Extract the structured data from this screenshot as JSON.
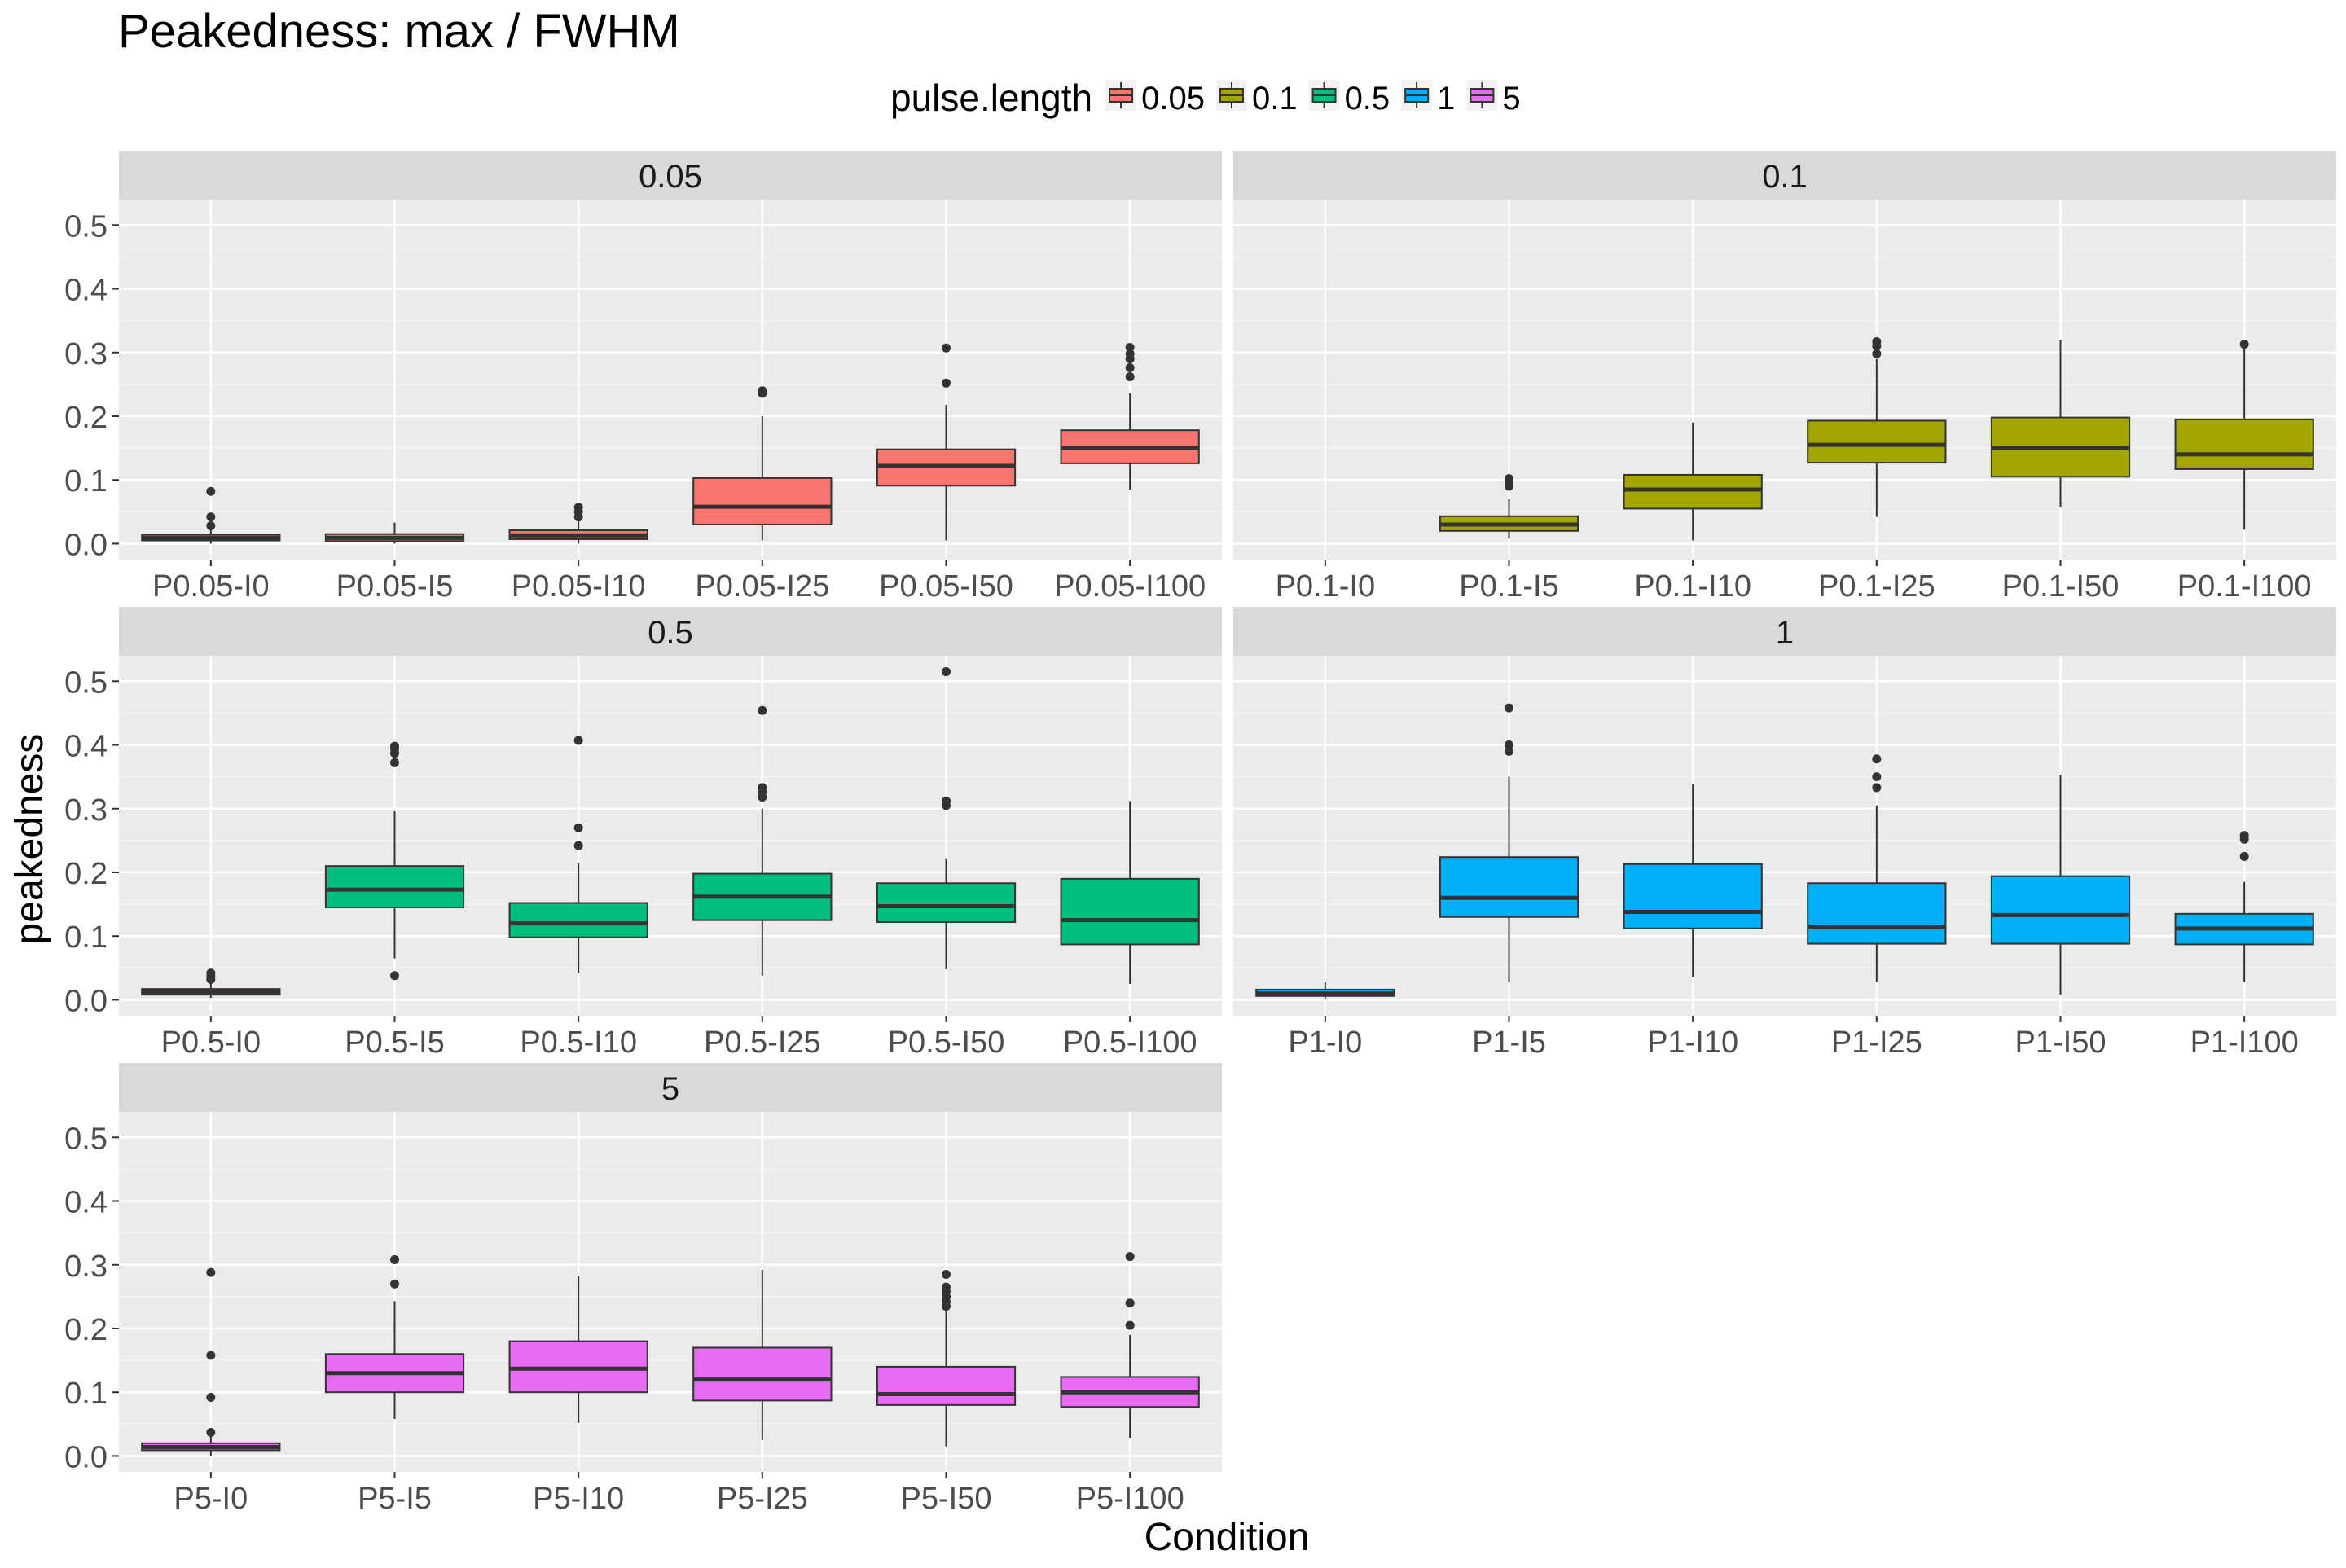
{
  "chart_data": {
    "type": "boxplot",
    "title": "Peakedness: max / FWHM",
    "xlabel": "Condition",
    "ylabel": "peakedness",
    "ylim": [
      -0.025,
      0.54
    ],
    "yticks": [
      0.0,
      0.1,
      0.2,
      0.3,
      0.4,
      0.5
    ],
    "ytick_labels": [
      "0.0",
      "0.1",
      "0.2",
      "0.3",
      "0.4",
      "0.5"
    ],
    "grid": true,
    "legend": {
      "title": "pulse.length",
      "placement": "top",
      "entries": [
        {
          "label": "0.05",
          "color": "#F8766D"
        },
        {
          "label": "0.1",
          "color": "#A3A500"
        },
        {
          "label": "0.5",
          "color": "#00BF7D"
        },
        {
          "label": "1",
          "color": "#00B0F6"
        },
        {
          "label": "5",
          "color": "#E76BF3"
        }
      ]
    },
    "facets": [
      {
        "label": "0.05",
        "color": "#F8766D",
        "boxes": [
          {
            "category": "P0.05-I0",
            "whisker_low": 0.0,
            "q1": 0.005,
            "median": 0.009,
            "q3": 0.014,
            "whisker_high": 0.022,
            "outliers": [
              0.028,
              0.042,
              0.082
            ]
          },
          {
            "category": "P0.05-I5",
            "whisker_low": 0.0,
            "q1": 0.004,
            "median": 0.009,
            "q3": 0.015,
            "whisker_high": 0.033,
            "outliers": []
          },
          {
            "category": "P0.05-I10",
            "whisker_low": 0.0,
            "q1": 0.007,
            "median": 0.013,
            "q3": 0.021,
            "whisker_high": 0.035,
            "outliers": [
              0.042,
              0.05,
              0.057
            ]
          },
          {
            "category": "P0.05-I25",
            "whisker_low": 0.005,
            "q1": 0.03,
            "median": 0.058,
            "q3": 0.103,
            "whisker_high": 0.2,
            "outliers": [
              0.236,
              0.24
            ]
          },
          {
            "category": "P0.05-I50",
            "whisker_low": 0.005,
            "q1": 0.091,
            "median": 0.122,
            "q3": 0.148,
            "whisker_high": 0.218,
            "outliers": [
              0.252,
              0.307
            ]
          },
          {
            "category": "P0.05-I100",
            "whisker_low": 0.085,
            "q1": 0.126,
            "median": 0.15,
            "q3": 0.178,
            "whisker_high": 0.236,
            "outliers": [
              0.262,
              0.276,
              0.29,
              0.298,
              0.308
            ]
          }
        ]
      },
      {
        "label": "0.1",
        "color": "#A3A500",
        "boxes": [
          {
            "category": "P0.1-I0"
          },
          {
            "category": "P0.1-I5",
            "whisker_low": 0.008,
            "q1": 0.02,
            "median": 0.03,
            "q3": 0.043,
            "whisker_high": 0.07,
            "outliers": [
              0.09,
              0.096,
              0.102
            ]
          },
          {
            "category": "P0.1-I10",
            "whisker_low": 0.005,
            "q1": 0.055,
            "median": 0.085,
            "q3": 0.108,
            "whisker_high": 0.19,
            "outliers": []
          },
          {
            "category": "P0.1-I25",
            "whisker_low": 0.042,
            "q1": 0.127,
            "median": 0.155,
            "q3": 0.193,
            "whisker_high": 0.29,
            "outliers": [
              0.298,
              0.31,
              0.317
            ]
          },
          {
            "category": "P0.1-I50",
            "whisker_low": 0.058,
            "q1": 0.105,
            "median": 0.15,
            "q3": 0.198,
            "whisker_high": 0.32,
            "outliers": []
          },
          {
            "category": "P0.1-I100",
            "whisker_low": 0.022,
            "q1": 0.117,
            "median": 0.14,
            "q3": 0.195,
            "whisker_high": 0.31,
            "outliers": [
              0.313
            ]
          }
        ]
      },
      {
        "label": "0.5",
        "color": "#00BF7D",
        "boxes": [
          {
            "category": "P0.5-I0",
            "whisker_low": 0.003,
            "q1": 0.008,
            "median": 0.012,
            "q3": 0.017,
            "whisker_high": 0.026,
            "outliers": [
              0.032,
              0.037,
              0.042
            ]
          },
          {
            "category": "P0.5-I5",
            "whisker_low": 0.065,
            "q1": 0.145,
            "median": 0.173,
            "q3": 0.21,
            "whisker_high": 0.296,
            "outliers": [
              0.038,
              0.372,
              0.387,
              0.394,
              0.398
            ]
          },
          {
            "category": "P0.5-I10",
            "whisker_low": 0.042,
            "q1": 0.098,
            "median": 0.12,
            "q3": 0.152,
            "whisker_high": 0.215,
            "outliers": [
              0.242,
              0.27,
              0.407
            ]
          },
          {
            "category": "P0.5-I25",
            "whisker_low": 0.038,
            "q1": 0.125,
            "median": 0.162,
            "q3": 0.198,
            "whisker_high": 0.3,
            "outliers": [
              0.318,
              0.326,
              0.333,
              0.454
            ]
          },
          {
            "category": "P0.5-I50",
            "whisker_low": 0.048,
            "q1": 0.122,
            "median": 0.147,
            "q3": 0.183,
            "whisker_high": 0.222,
            "outliers": [
              0.305,
              0.312,
              0.515
            ]
          },
          {
            "category": "P0.5-I100",
            "whisker_low": 0.025,
            "q1": 0.087,
            "median": 0.125,
            "q3": 0.19,
            "whisker_high": 0.312,
            "outliers": []
          }
        ]
      },
      {
        "label": "1",
        "color": "#00B0F6",
        "boxes": [
          {
            "category": "P1-I0",
            "whisker_low": 0.002,
            "q1": 0.006,
            "median": 0.01,
            "q3": 0.016,
            "whisker_high": 0.028,
            "outliers": []
          },
          {
            "category": "P1-I5",
            "whisker_low": 0.028,
            "q1": 0.13,
            "median": 0.16,
            "q3": 0.224,
            "whisker_high": 0.35,
            "outliers": [
              0.39,
              0.4,
              0.458
            ]
          },
          {
            "category": "P1-I10",
            "whisker_low": 0.035,
            "q1": 0.112,
            "median": 0.138,
            "q3": 0.213,
            "whisker_high": 0.338,
            "outliers": []
          },
          {
            "category": "P1-I25",
            "whisker_low": 0.028,
            "q1": 0.088,
            "median": 0.115,
            "q3": 0.183,
            "whisker_high": 0.305,
            "outliers": [
              0.333,
              0.35,
              0.378
            ]
          },
          {
            "category": "P1-I50",
            "whisker_low": 0.008,
            "q1": 0.088,
            "median": 0.133,
            "q3": 0.194,
            "whisker_high": 0.353,
            "outliers": []
          },
          {
            "category": "P1-I100",
            "whisker_low": 0.028,
            "q1": 0.087,
            "median": 0.112,
            "q3": 0.135,
            "whisker_high": 0.185,
            "outliers": [
              0.225,
              0.252,
              0.258
            ]
          }
        ]
      },
      {
        "label": "5",
        "color": "#E76BF3",
        "boxes": [
          {
            "category": "P5-I0",
            "whisker_low": 0.0,
            "q1": 0.009,
            "median": 0.014,
            "q3": 0.02,
            "whisker_high": 0.03,
            "outliers": [
              0.037,
              0.092,
              0.158,
              0.288
            ]
          },
          {
            "category": "P5-I5",
            "whisker_low": 0.058,
            "q1": 0.1,
            "median": 0.13,
            "q3": 0.16,
            "whisker_high": 0.243,
            "outliers": [
              0.27,
              0.308
            ]
          },
          {
            "category": "P5-I10",
            "whisker_low": 0.052,
            "q1": 0.1,
            "median": 0.137,
            "q3": 0.18,
            "whisker_high": 0.283,
            "outliers": []
          },
          {
            "category": "P5-I25",
            "whisker_low": 0.025,
            "q1": 0.087,
            "median": 0.12,
            "q3": 0.17,
            "whisker_high": 0.292,
            "outliers": []
          },
          {
            "category": "P5-I50",
            "whisker_low": 0.015,
            "q1": 0.08,
            "median": 0.097,
            "q3": 0.14,
            "whisker_high": 0.228,
            "outliers": [
              0.235,
              0.242,
              0.25,
              0.258,
              0.265,
              0.285
            ]
          },
          {
            "category": "P5-I100",
            "whisker_low": 0.028,
            "q1": 0.077,
            "median": 0.1,
            "q3": 0.124,
            "whisker_high": 0.19,
            "outliers": [
              0.205,
              0.24,
              0.313
            ]
          }
        ]
      }
    ]
  }
}
